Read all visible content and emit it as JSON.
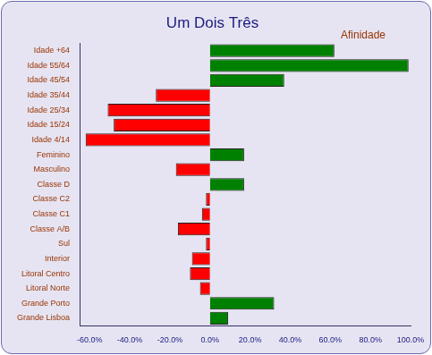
{
  "chart_data": {
    "type": "bar",
    "orientation": "horizontal",
    "title": "Um Dois Três",
    "annotations": [
      "Afinidade"
    ],
    "categories": [
      "Idade +64",
      "Idade 55/64",
      "Idade 45/54",
      "Idade 35/44",
      "Idade 25/34",
      "Idade 15/24",
      "Idade 4/14",
      "Feminino",
      "Masculino",
      "Classe D",
      "Classe C2",
      "Classe C1",
      "Classe A/B",
      "Sul",
      "Interior",
      "Litoral Centro",
      "Litoral Norte",
      "Grande Porto",
      "Grande Lisboa"
    ],
    "values": [
      62,
      99,
      37,
      -27,
      -51,
      -48,
      -62,
      17,
      -17,
      17,
      -2,
      -4,
      -16,
      -2,
      -9,
      -10,
      -5,
      32,
      9
    ],
    "colors": [
      "#008000",
      "#008000",
      "#008000",
      "#ff0000",
      "#ff0000",
      "#ff0000",
      "#ff0000",
      "#008000",
      "#ff0000",
      "#008000",
      "#ff0000",
      "#ff0000",
      "#ff0000",
      "#ff0000",
      "#ff0000",
      "#ff0000",
      "#ff0000",
      "#008000",
      "#008000"
    ],
    "xlim": [
      -65,
      100
    ],
    "xticks": [
      {
        "value": -60,
        "label": "-60.0%"
      },
      {
        "value": -40,
        "label": "-40.0%"
      },
      {
        "value": -20,
        "label": "-20.0%"
      },
      {
        "value": 0,
        "label": "0.0%"
      },
      {
        "value": 20,
        "label": "20.0%"
      },
      {
        "value": 40,
        "label": "40.0%"
      },
      {
        "value": 60,
        "label": "60.0%"
      },
      {
        "value": 80,
        "label": "80.0%"
      },
      {
        "value": 100,
        "label": "100.0%"
      }
    ],
    "grid": false
  }
}
